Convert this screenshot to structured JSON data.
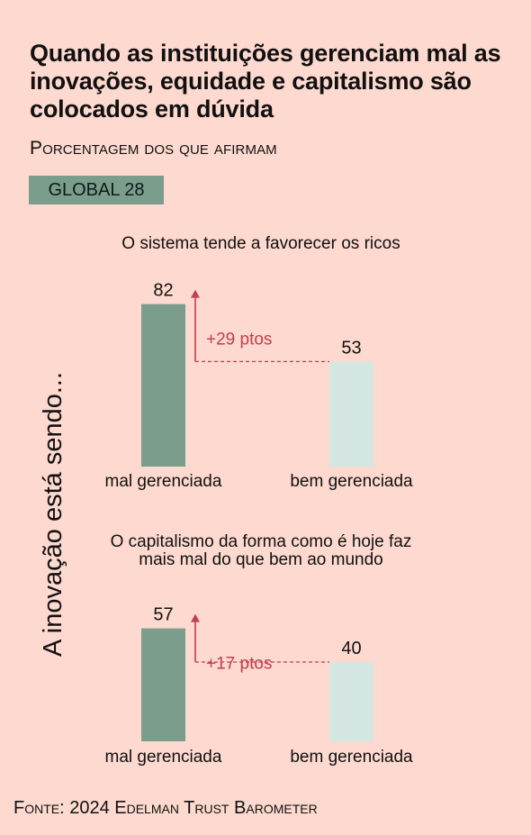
{
  "header": {
    "title": "Quando as instituições gerenciam mal as inovações, equidade e capitalismo são colocados em dúvida",
    "subtitle": "Porcentagem dos que afirmam",
    "badge": "GLOBAL 28"
  },
  "footer": {
    "source": "Fonte: 2024 Edelman Trust Barometer"
  },
  "colors": {
    "background": "#fdd9cf",
    "bar_poor": "#7a9d8c",
    "bar_good": "#d4e7e3",
    "accent": "#c0404c"
  },
  "chart_data": [
    {
      "type": "bar",
      "title": "O sistema tende a favorecer os ricos",
      "categories": [
        "mal gerenciada",
        "bem gerenciada"
      ],
      "values": [
        82,
        53
      ],
      "difference_label": "+29 ptos",
      "side_label": "A inovação está sendo..."
    },
    {
      "type": "bar",
      "title": "O capitalismo da forma como é hoje faz mais mal do que bem ao mundo",
      "categories": [
        "mal gerenciada",
        "bem gerenciada"
      ],
      "values": [
        57,
        40
      ],
      "difference_label": "+17 ptos",
      "side_label": "A inovação está sendo..."
    }
  ]
}
